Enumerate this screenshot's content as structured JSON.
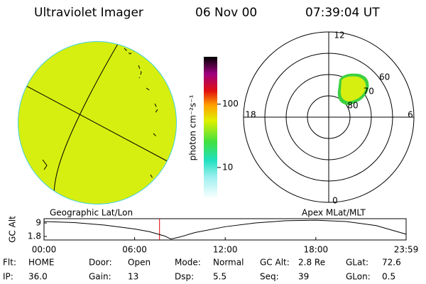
{
  "header": {
    "title": "Ultraviolet Imager",
    "date": "06 Nov 00",
    "time": "07:39:04 UT"
  },
  "colorbar": {
    "label": "photon cm⁻²s⁻¹",
    "log": true,
    "range": [
      3.2,
      560
    ],
    "ticks": [
      10,
      100
    ]
  },
  "polar": {
    "mlt_labels": [
      "12",
      "18",
      "6",
      "0"
    ],
    "lat_labels": [
      80,
      70,
      60
    ],
    "lat_min": 50
  },
  "chart_data": {
    "type": "line",
    "ylabel": "GC Alt",
    "left_title": "Geographic Lat/Lon",
    "right_title": "Apex MLat/MLT",
    "x": [
      0,
      2,
      4,
      6,
      7,
      8,
      8.4,
      9,
      10,
      12,
      14,
      16,
      18,
      20,
      22,
      23.98
    ],
    "series": [
      {
        "name": "GC Alt",
        "color": "#000000",
        "values": [
          9.8,
          9.2,
          7.9,
          5.8,
          4.3,
          2.0,
          0.4,
          1.5,
          3.9,
          7.0,
          9.0,
          10.2,
          10.5,
          9.8,
          7.6,
          3.0
        ]
      }
    ],
    "xlim": [
      0,
      23.98
    ],
    "ylim": [
      -0.1,
      11.3
    ],
    "xticks": [
      {
        "value": 0,
        "label": "00:00"
      },
      {
        "value": 6,
        "label": "06:00"
      },
      {
        "value": 12,
        "label": "12:00"
      },
      {
        "value": 18,
        "label": "18:00"
      },
      {
        "value": 23.98,
        "label": "23:59"
      }
    ],
    "yticks": [
      1.8,
      9.0
    ],
    "marker_x": 7.65,
    "marker_color": "#e00000"
  },
  "status": [
    [
      {
        "label": "Flt:",
        "value": "HOME"
      },
      {
        "label": "Door:",
        "value": "Open"
      },
      {
        "label": "Mode:",
        "value": "Normal"
      },
      {
        "label": "GC Alt:",
        "value": "2.8 Re"
      },
      {
        "label": "GLat:",
        "value": "72.6"
      }
    ],
    [
      {
        "label": "IP:",
        "value": "36.0"
      },
      {
        "label": "Gain:",
        "value": "13"
      },
      {
        "label": "Dsp:",
        "value": "5.5"
      },
      {
        "label": "Seq:",
        "value": "39"
      },
      {
        "label": "GLon:",
        "value": "0.5"
      }
    ]
  ]
}
